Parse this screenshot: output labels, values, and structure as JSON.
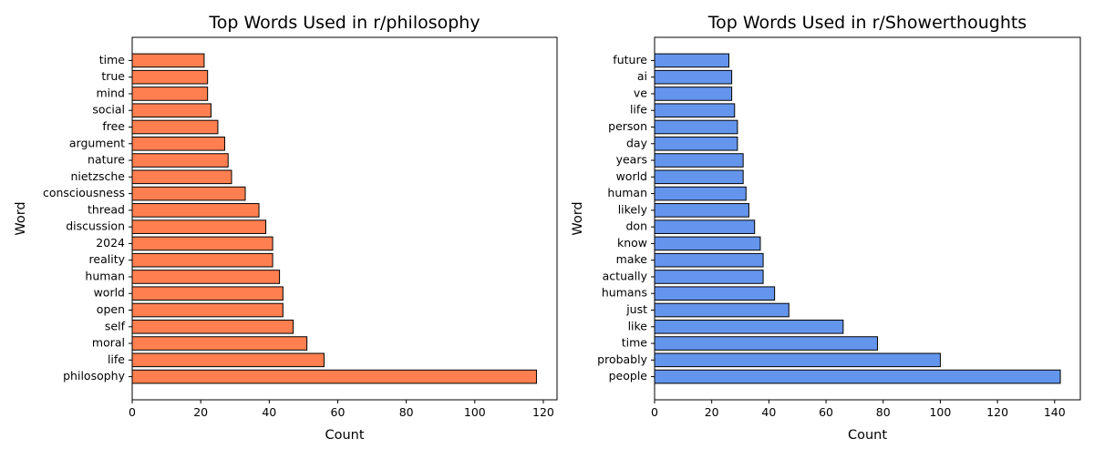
{
  "chart_data": [
    {
      "type": "bar",
      "orientation": "horizontal",
      "title": "Top Words Used in r/philosophy",
      "xlabel": "Count",
      "ylabel": "Word",
      "xlim": [
        0,
        124
      ],
      "xticks": [
        "0",
        "20",
        "40",
        "60",
        "80",
        "100",
        "120"
      ],
      "color": "#ff7f50",
      "edge_color": "#000000",
      "grid": false,
      "categories": [
        "philosophy",
        "life",
        "moral",
        "self",
        "open",
        "world",
        "human",
        "reality",
        "2024",
        "discussion",
        "thread",
        "consciousness",
        "nietzsche",
        "nature",
        "argument",
        "free",
        "social",
        "mind",
        "true",
        "time"
      ],
      "values": [
        118,
        56,
        51,
        47,
        44,
        44,
        43,
        41,
        41,
        39,
        37,
        33,
        29,
        28,
        27,
        25,
        23,
        22,
        22,
        21
      ]
    },
    {
      "type": "bar",
      "orientation": "horizontal",
      "title": "Top Words Used in r/Showerthoughts",
      "xlabel": "Count",
      "ylabel": "Word",
      "xlim": [
        0,
        149
      ],
      "xticks": [
        "0",
        "20",
        "40",
        "60",
        "80",
        "100",
        "120",
        "140"
      ],
      "color": "#6495ed",
      "edge_color": "#000000",
      "grid": false,
      "categories": [
        "people",
        "probably",
        "time",
        "like",
        "just",
        "humans",
        "actually",
        "make",
        "know",
        "don",
        "likely",
        "human",
        "world",
        "years",
        "day",
        "person",
        "life",
        "ve",
        "ai",
        "future"
      ],
      "values": [
        142,
        100,
        78,
        66,
        47,
        42,
        38,
        38,
        37,
        35,
        33,
        32,
        31,
        31,
        29,
        29,
        28,
        27,
        27,
        26
      ]
    }
  ]
}
